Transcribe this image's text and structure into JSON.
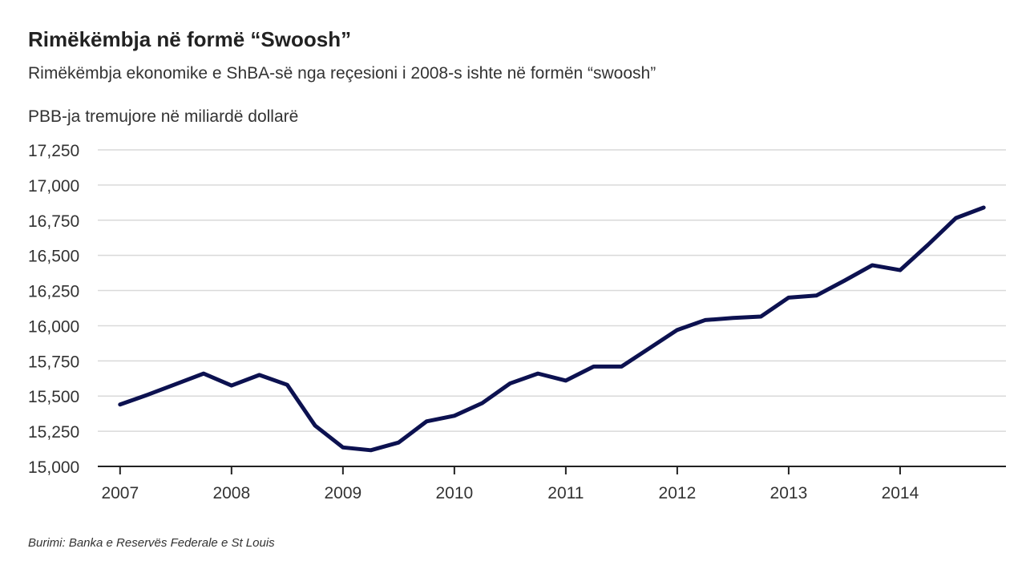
{
  "chart_data": {
    "type": "line",
    "title": "Rimëkëmbja në formë “Swoosh”",
    "subtitle": "Rimëkëmbja ekonomike e ShBA-së nga reçesioni i 2008-s ishte në formën “swoosh”",
    "y_label": "PBB-ja tremujore në miliardë dollarë",
    "source": "Burimi: Banka e Reservës Federale e St Louis",
    "x": [
      2007,
      2007.25,
      2007.5,
      2007.75,
      2008,
      2008.25,
      2008.5,
      2008.75,
      2009,
      2009.25,
      2009.5,
      2009.75,
      2010,
      2010.25,
      2010.5,
      2010.75,
      2011,
      2011.25,
      2011.5,
      2011.75,
      2012,
      2012.25,
      2012.5,
      2012.75,
      2013,
      2013.25,
      2013.5,
      2013.75,
      2014,
      2014.25,
      2014.5,
      2014.75
    ],
    "series": [
      {
        "name": "PBB",
        "color": "#0c1150",
        "values": [
          15440,
          15510,
          15585,
          15660,
          15575,
          15650,
          15580,
          15290,
          15135,
          15115,
          15170,
          15320,
          15360,
          15450,
          15590,
          15660,
          15610,
          15710,
          15710,
          15840,
          15970,
          16040,
          16055,
          16065,
          16200,
          16215,
          16320,
          16430,
          16395,
          16575,
          16765,
          16840
        ]
      }
    ],
    "xlim": [
      2006.8,
      2014.95
    ],
    "xticks": [
      2007,
      2008,
      2009,
      2010,
      2011,
      2012,
      2013,
      2014
    ],
    "ylim": [
      15000,
      17250
    ],
    "yticks": [
      {
        "value": 15000,
        "label": "15,000"
      },
      {
        "value": 15250,
        "label": "15,250"
      },
      {
        "value": 15500,
        "label": "15,500"
      },
      {
        "value": 15750,
        "label": "15,750"
      },
      {
        "value": 16000,
        "label": "16,000"
      },
      {
        "value": 16250,
        "label": "16,250"
      },
      {
        "value": 16500,
        "label": "16,500"
      },
      {
        "value": 16750,
        "label": "16,750"
      },
      {
        "value": 17000,
        "label": "17,000"
      },
      {
        "value": 17250,
        "label": "17,250"
      }
    ],
    "grid": true
  }
}
